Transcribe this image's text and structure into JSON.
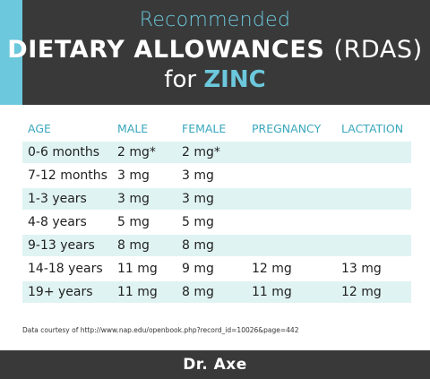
{
  "header": {
    "line1": "Recommended",
    "line2_main": "DIETARY ALLOWANCES",
    "line2_abbr": "(RDAS)",
    "line3_prefix": "for",
    "line3_highlight": "ZINC"
  },
  "table": {
    "columns": [
      "AGE",
      "MALE",
      "FEMALE",
      "PREGNANCY",
      "LACTATION"
    ],
    "rows": [
      [
        "0-6 months",
        "2 mg*",
        "2 mg*",
        "",
        ""
      ],
      [
        "7-12 months",
        "3 mg",
        "3 mg",
        "",
        ""
      ],
      [
        "1-3 years",
        "3 mg",
        "3 mg",
        "",
        ""
      ],
      [
        "4-8 years",
        "5 mg",
        "5 mg",
        "",
        ""
      ],
      [
        "9-13 years",
        "8 mg",
        "8 mg",
        "",
        ""
      ],
      [
        "14-18 years",
        "11 mg",
        "9 mg",
        "12 mg",
        "13 mg"
      ],
      [
        "19+ years",
        "11 mg",
        "8 mg",
        "11 mg",
        "12 mg"
      ]
    ]
  },
  "source": "Data courtesy of http://www.nap.edu/openbook.php?record_id=10026&page=442",
  "footer": {
    "brand": "Dr. Axe"
  },
  "colors": {
    "dark": "#393939",
    "accent": "#6cc8dc",
    "row_shade": "#e0f3f3",
    "header_text": "#3aa7bd"
  }
}
